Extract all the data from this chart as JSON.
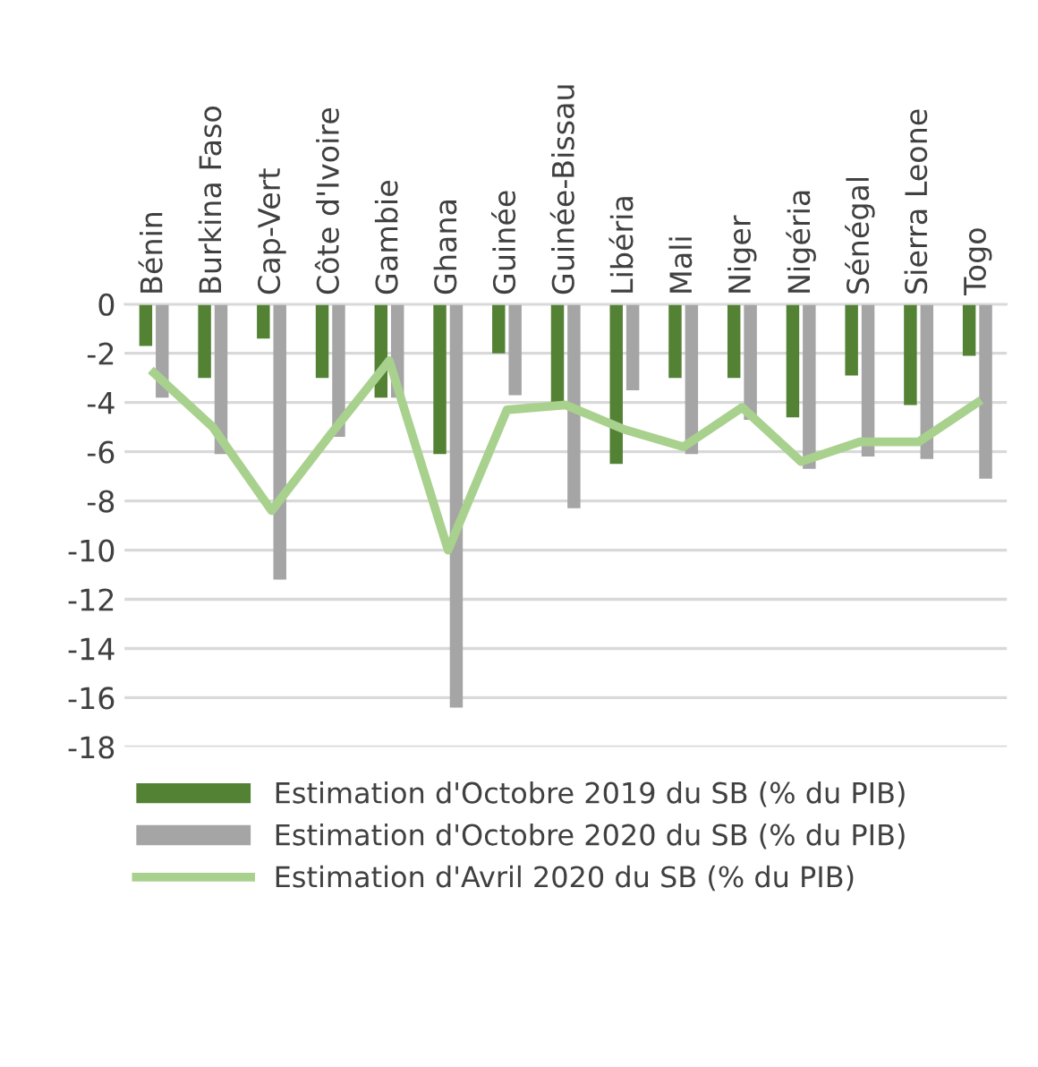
{
  "chart_data": {
    "type": "bar",
    "categories": [
      "Bénin",
      "Burkina Faso",
      "Cap-Vert",
      "Côte d'Ivoire",
      "Gambie",
      "Ghana",
      "Guinée",
      "Guinée-Bissau",
      "Libéria",
      "Mali",
      "Niger",
      "Nigéria",
      "Sénégal",
      "Sierra Leone",
      "Togo"
    ],
    "series": [
      {
        "name": "Estimation d'Octobre 2019 du SB (% du PIB)",
        "color": "#548235",
        "values": [
          -1.7,
          -3.0,
          -1.4,
          -3.0,
          -3.8,
          -6.1,
          -2.0,
          -4.0,
          -6.5,
          -3.0,
          -3.0,
          -4.6,
          -2.9,
          -4.1,
          -2.1
        ]
      },
      {
        "name": "Estimation d'Octobre 2020 du SB (% du PIB)",
        "color": "#a5a5a5",
        "values": [
          -3.8,
          -6.1,
          -11.2,
          -5.4,
          -3.8,
          -16.4,
          -3.7,
          -8.3,
          -3.5,
          -6.1,
          -4.7,
          -6.7,
          -6.2,
          -6.3,
          -7.1
        ]
      },
      {
        "name": "Estimation d'Avril 2020 du SB (% du PIB)",
        "type": "line",
        "color": "#a9d18e",
        "values": [
          -2.8,
          -5.0,
          -8.4,
          -5.3,
          -2.3,
          -10.0,
          -4.3,
          -4.1,
          -5.1,
          -5.8,
          -4.2,
          -6.4,
          -5.6,
          -5.6,
          -4.0
        ]
      }
    ],
    "ylim": [
      -18,
      0
    ],
    "yticks": [
      -18,
      -16,
      -14,
      -12,
      -10,
      -8,
      -6,
      -4,
      -2,
      0
    ],
    "grid": "y",
    "legend": "bottom"
  }
}
